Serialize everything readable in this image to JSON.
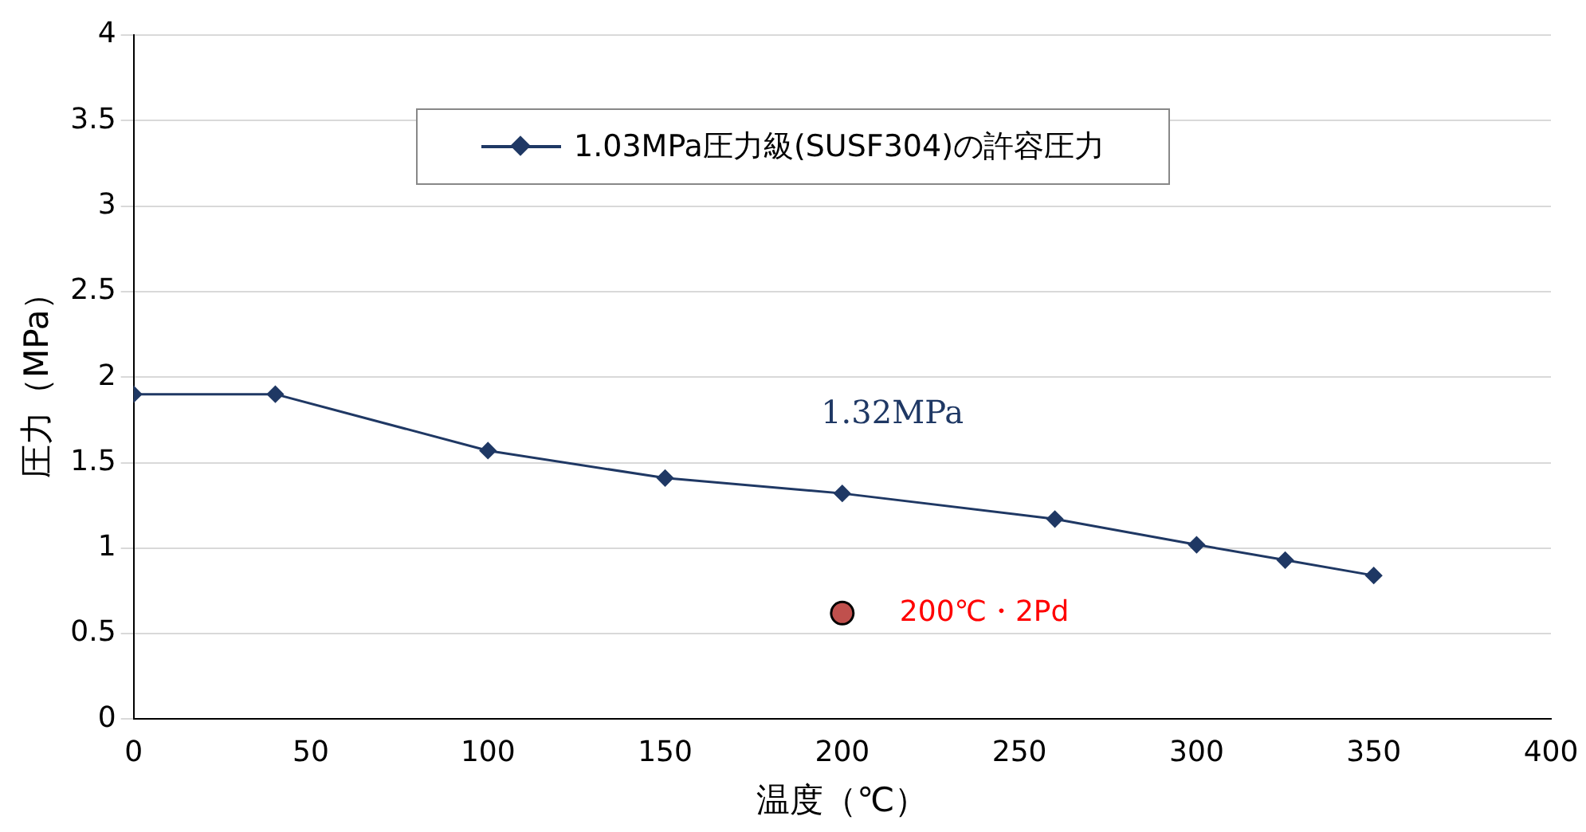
{
  "chart_data": {
    "type": "line",
    "xlabel": "温度（℃）",
    "ylabel": "圧力（MPa）",
    "xlim": [
      0,
      400
    ],
    "xticks": [
      0,
      50,
      100,
      150,
      200,
      250,
      300,
      350,
      400
    ],
    "ylim": [
      0,
      4
    ],
    "yticks": [
      0,
      0.5,
      1,
      1.5,
      2,
      2.5,
      3,
      3.5,
      4
    ],
    "grid": "y",
    "legend": "top",
    "marker": "diamond",
    "line_style": "solid",
    "series": [
      {
        "name": "1.03MPa圧力級(SUSF304)の許容圧力",
        "color": "#1f3864",
        "x": [
          0,
          40,
          100,
          150,
          200,
          260,
          300,
          325,
          350
        ],
        "values": [
          1.9,
          1.9,
          1.57,
          1.41,
          1.32,
          1.17,
          1.02,
          0.93,
          0.84
        ]
      },
      {
        "type": "scatter",
        "marker": "circle",
        "color": "#c0504d",
        "x": [
          200
        ],
        "values": [
          0.62
        ]
      }
    ],
    "annotations": [
      "1.32MPa",
      {
        "text": "200℃・2Pd",
        "x": 200,
        "y": 0.62
      }
    ]
  }
}
